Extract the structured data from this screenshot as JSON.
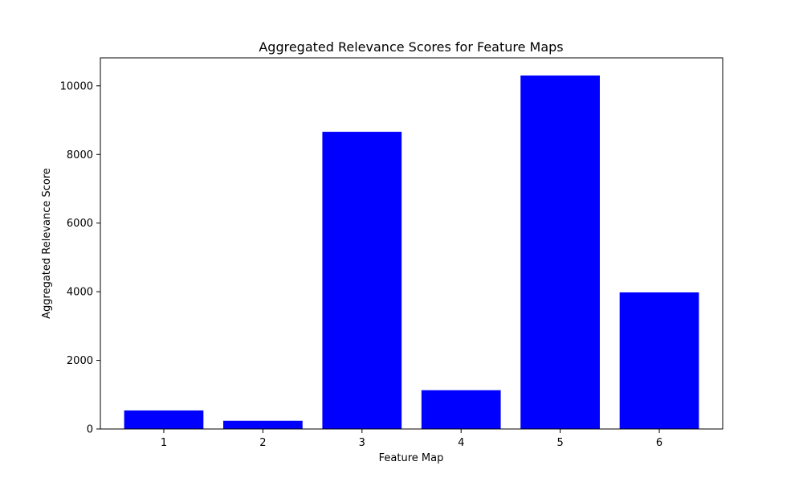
{
  "chart_data": {
    "type": "bar",
    "title": "Aggregated Relevance Scores for Feature Maps",
    "xlabel": "Feature Map",
    "ylabel": "Aggregated Relevance Score",
    "categories": [
      "1",
      "2",
      "3",
      "4",
      "5",
      "6"
    ],
    "values": [
      540,
      240,
      8660,
      1130,
      10300,
      3980
    ],
    "ylim": [
      0,
      10815
    ],
    "yticks": [
      0,
      2000,
      4000,
      6000,
      8000,
      10000
    ],
    "bar_color": "#0000ff",
    "grid": false,
    "legend": "none"
  }
}
